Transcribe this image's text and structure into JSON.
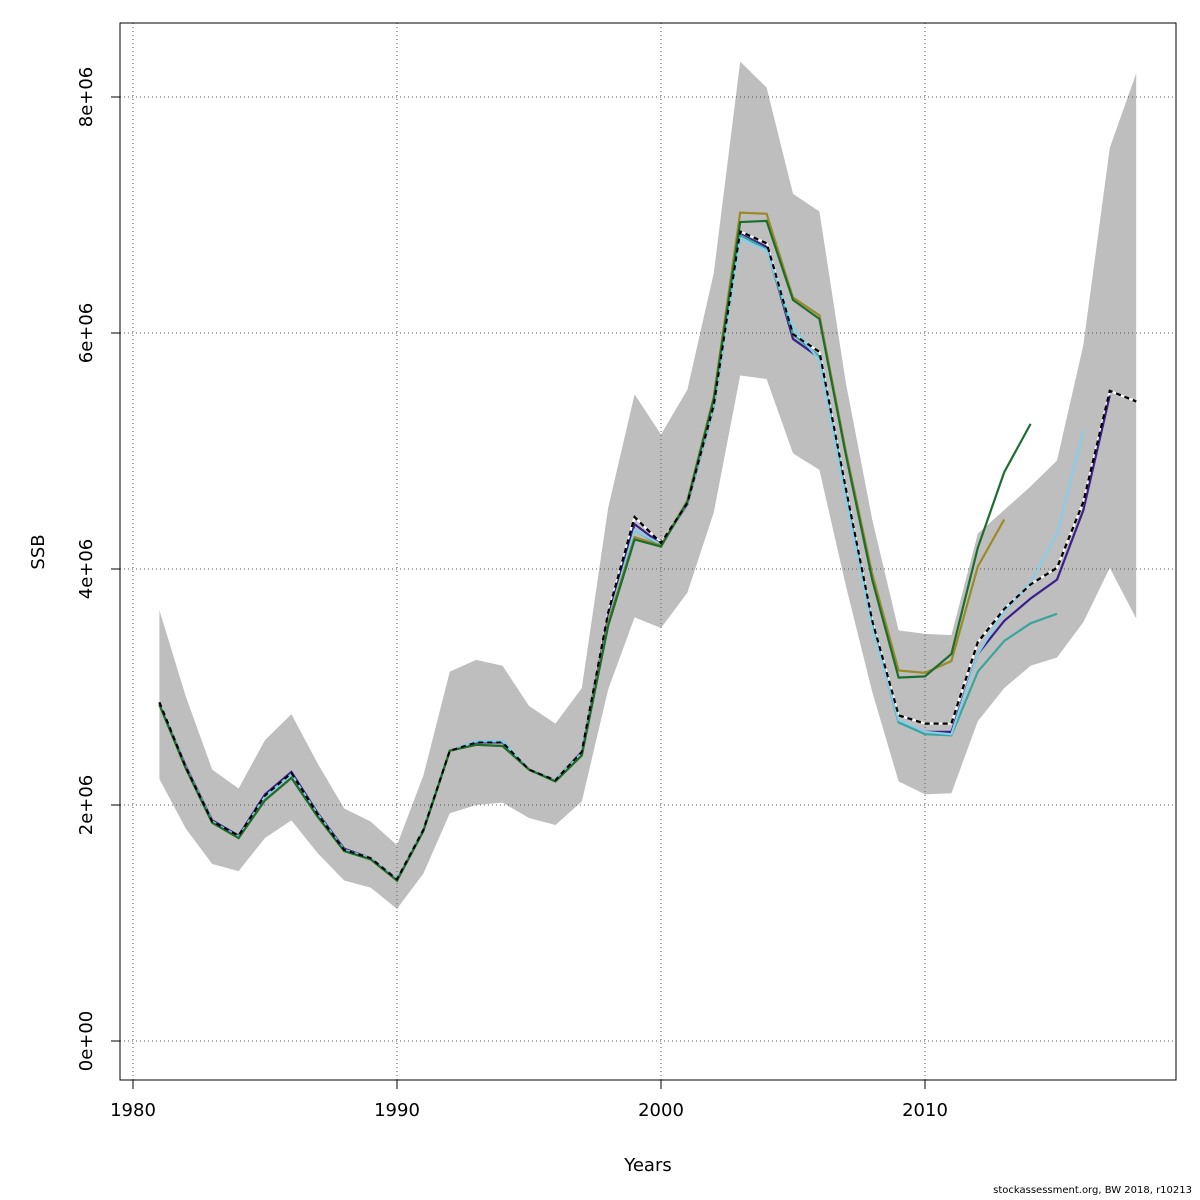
{
  "chart_data": {
    "type": "line",
    "xlabel": "Years",
    "ylabel": "SSB",
    "xlim": [
      1980,
      2019
    ],
    "ylim": [
      0,
      8600000
    ],
    "x_ticks": [
      1980,
      1990,
      2000,
      2010
    ],
    "x_tick_labels": [
      "1980",
      "1990",
      "2000",
      "2010"
    ],
    "y_ticks": [
      0,
      2000000,
      4000000,
      6000000,
      8000000
    ],
    "y_tick_labels": [
      "0e+00",
      "2e+06",
      "4e+06",
      "6e+06",
      "8e+06"
    ],
    "grid": true,
    "band": {
      "fill_color": "#bebebe",
      "x": [
        1981,
        1982,
        1983,
        1984,
        1985,
        1986,
        1987,
        1988,
        1989,
        1990,
        1991,
        1992,
        1993,
        1994,
        1995,
        1996,
        1997,
        1998,
        1999,
        2000,
        2001,
        2002,
        2003,
        2004,
        2005,
        2006,
        2007,
        2008,
        2009,
        2010,
        2011,
        2012,
        2013,
        2014,
        2015,
        2016,
        2017,
        2018
      ],
      "upper": [
        3650000,
        2920000,
        2300000,
        2140000,
        2550000,
        2770000,
        2350000,
        1970000,
        1860000,
        1660000,
        2250000,
        3130000,
        3230000,
        3180000,
        2840000,
        2690000,
        2990000,
        4520000,
        5480000,
        5140000,
        5520000,
        6510000,
        8300000,
        8080000,
        7180000,
        7030000,
        5580000,
        4420000,
        3480000,
        3450000,
        3440000,
        4300000,
        4500000,
        4700000,
        4920000,
        5900000,
        7570000,
        8200000
      ],
      "lower": [
        2220000,
        1800000,
        1500000,
        1440000,
        1720000,
        1870000,
        1590000,
        1360000,
        1300000,
        1120000,
        1420000,
        1930000,
        2000000,
        2020000,
        1890000,
        1830000,
        2030000,
        2980000,
        3590000,
        3500000,
        3800000,
        4480000,
        5640000,
        5610000,
        4980000,
        4840000,
        3860000,
        2960000,
        2200000,
        2090000,
        2100000,
        2710000,
        2990000,
        3180000,
        3250000,
        3550000,
        4010000,
        3580000
      ]
    },
    "series": [
      {
        "color": "#000000",
        "dashed": true,
        "x": [
          1981,
          1982,
          1983,
          1984,
          1985,
          1986,
          1987,
          1988,
          1989,
          1990,
          1991,
          1992,
          1993,
          1994,
          1995,
          1996,
          1997,
          1998,
          1999,
          2000,
          2001,
          2002,
          2003,
          2004,
          2005,
          2006,
          2007,
          2008,
          2009,
          2010,
          2011,
          2012,
          2013,
          2014,
          2015,
          2016,
          2017,
          2018
        ],
        "values": [
          2870000,
          2320000,
          1860000,
          1740000,
          2080000,
          2270000,
          1920000,
          1620000,
          1550000,
          1370000,
          1790000,
          2460000,
          2530000,
          2530000,
          2300000,
          2210000,
          2450000,
          3630000,
          4440000,
          4220000,
          4560000,
          5390000,
          6860000,
          6760000,
          5990000,
          5840000,
          4680000,
          3560000,
          2760000,
          2690000,
          2690000,
          3380000,
          3660000,
          3870000,
          4010000,
          4570000,
          5510000,
          5420000
        ]
      },
      {
        "color": "#3b1f8a",
        "x": [
          1981,
          1982,
          1983,
          1984,
          1985,
          1986,
          1987,
          1988,
          1989,
          1990,
          1991,
          1992,
          1993,
          1994,
          1995,
          1996,
          1997,
          1998,
          1999,
          2000,
          2001,
          2002,
          2003,
          2004,
          2005,
          2006,
          2007,
          2008,
          2009,
          2010,
          2011,
          2012,
          2013,
          2014,
          2015,
          2016,
          2017
        ],
        "values": [
          2860000,
          2330000,
          1870000,
          1740000,
          2090000,
          2280000,
          1930000,
          1630000,
          1550000,
          1370000,
          1790000,
          2460000,
          2530000,
          2530000,
          2300000,
          2210000,
          2450000,
          3600000,
          4380000,
          4210000,
          4550000,
          5380000,
          6840000,
          6730000,
          5950000,
          5790000,
          4640000,
          3520000,
          2710000,
          2620000,
          2620000,
          3280000,
          3560000,
          3750000,
          3910000,
          4500000,
          5470000
        ]
      },
      {
        "color": "#3aa59a",
        "x": [
          1981,
          1982,
          1983,
          1984,
          1985,
          1986,
          1987,
          1988,
          1989,
          1990,
          1991,
          1992,
          1993,
          1994,
          1995,
          1996,
          1997,
          1998,
          1999,
          2000,
          2001,
          2002,
          2003,
          2004,
          2005,
          2006,
          2007,
          2008,
          2009,
          2010,
          2011,
          2012,
          2013,
          2014,
          2015
        ],
        "values": [
          2860000,
          2320000,
          1860000,
          1730000,
          2070000,
          2260000,
          1920000,
          1620000,
          1550000,
          1370000,
          1790000,
          2460000,
          2540000,
          2540000,
          2300000,
          2210000,
          2440000,
          3560000,
          4330000,
          4200000,
          4560000,
          5380000,
          6830000,
          6710000,
          5990000,
          5800000,
          4640000,
          3530000,
          2700000,
          2600000,
          2590000,
          3130000,
          3390000,
          3540000,
          3620000
        ]
      },
      {
        "color": "#87ceeb",
        "x": [
          1981,
          1982,
          1983,
          1984,
          1985,
          1986,
          1987,
          1988,
          1989,
          1990,
          1991,
          1992,
          1993,
          1994,
          1995,
          1996,
          1997,
          1998,
          1999,
          2000,
          2001,
          2002,
          2003,
          2004,
          2005,
          2006,
          2007,
          2008,
          2009,
          2010,
          2011,
          2012,
          2013,
          2014,
          2015,
          2016
        ],
        "values": [
          2860000,
          2320000,
          1860000,
          1730000,
          2070000,
          2260000,
          1920000,
          1620000,
          1550000,
          1370000,
          1790000,
          2460000,
          2540000,
          2540000,
          2300000,
          2210000,
          2440000,
          3560000,
          4330000,
          4210000,
          4560000,
          5390000,
          6800000,
          6700000,
          6050000,
          5770000,
          4600000,
          3500000,
          2720000,
          2620000,
          2600000,
          3280000,
          3640000,
          3880000,
          4300000,
          5170000
        ]
      },
      {
        "color": "#9a8a28",
        "x": [
          1981,
          1982,
          1983,
          1984,
          1985,
          1986,
          1987,
          1988,
          1989,
          1990,
          1991,
          1992,
          1993,
          1994,
          1995,
          1996,
          1997,
          1998,
          1999,
          2000,
          2001,
          2002,
          2003,
          2004,
          2005,
          2006,
          2007,
          2008,
          2009,
          2010,
          2011,
          2012,
          2013
        ],
        "values": [
          2850000,
          2310000,
          1850000,
          1720000,
          2040000,
          2230000,
          1900000,
          1610000,
          1540000,
          1360000,
          1780000,
          2460000,
          2510000,
          2500000,
          2300000,
          2200000,
          2420000,
          3550000,
          4270000,
          4200000,
          4580000,
          5460000,
          7020000,
          7010000,
          6300000,
          6150000,
          5000000,
          3960000,
          3140000,
          3120000,
          3220000,
          4020000,
          4420000
        ]
      },
      {
        "color": "#1b6e2e",
        "x": [
          1981,
          1982,
          1983,
          1984,
          1985,
          1986,
          1987,
          1988,
          1989,
          1990,
          1991,
          1992,
          1993,
          1994,
          1995,
          1996,
          1997,
          1998,
          1999,
          2000,
          2001,
          2002,
          2003,
          2004,
          2005,
          2006,
          2007,
          2008,
          2009,
          2010,
          2011,
          2012,
          2013,
          2014
        ],
        "values": [
          2850000,
          2310000,
          1850000,
          1720000,
          2040000,
          2230000,
          1900000,
          1610000,
          1540000,
          1360000,
          1780000,
          2460000,
          2510000,
          2500000,
          2300000,
          2200000,
          2420000,
          3520000,
          4250000,
          4190000,
          4570000,
          5440000,
          6940000,
          6950000,
          6280000,
          6120000,
          4970000,
          3910000,
          3080000,
          3090000,
          3280000,
          4180000,
          4820000,
          5230000
        ]
      }
    ]
  },
  "footer": "stockassessment.org, BW  2018, r10213"
}
